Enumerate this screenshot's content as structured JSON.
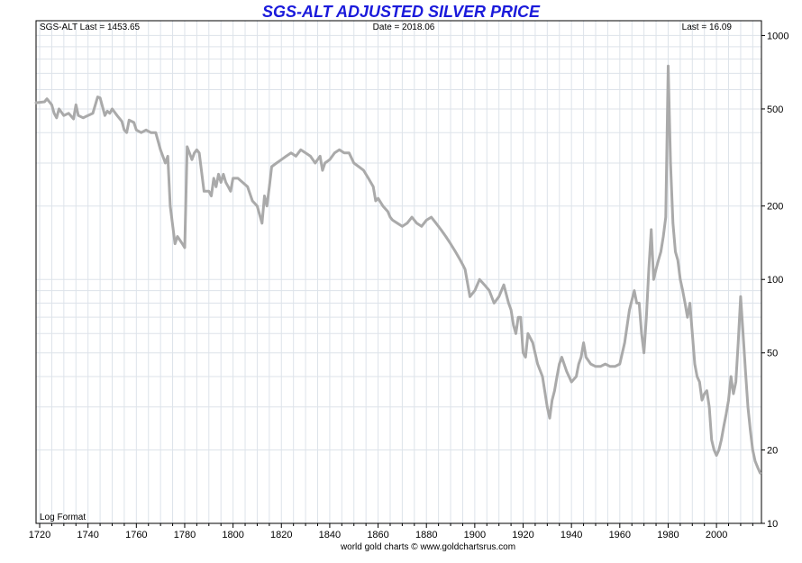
{
  "colors": {
    "title": "#1a1adb",
    "series": "#aaaaaa",
    "grid": "#dde3ea",
    "axis": "#000000"
  },
  "chart_data": {
    "type": "line",
    "title": "SGS-ALT ADJUSTED  SILVER PRICE",
    "header_left": "SGS-ALT Last = 1453.65",
    "header_center": "Date = 2018.06",
    "header_right": "Last = 16.09",
    "format_label": "Log Format",
    "footer": "world gold charts © www.goldchartsrus.com",
    "xlim": [
      1718.5,
      2018.6
    ],
    "ylim": [
      10,
      1150
    ],
    "yscale": "log",
    "x_ticks": [
      1720,
      1740,
      1760,
      1780,
      1800,
      1820,
      1840,
      1860,
      1880,
      1900,
      1920,
      1940,
      1960,
      1980,
      2000
    ],
    "y_ticks": [
      10,
      20,
      50,
      100,
      200,
      500,
      1000
    ],
    "grid": true,
    "series": [
      {
        "x": [
          1718.5,
          1722,
          1723,
          1725,
          1726,
          1727,
          1728,
          1730,
          1732,
          1734,
          1735,
          1736,
          1738,
          1740,
          1742,
          1744,
          1745,
          1747,
          1748,
          1749,
          1750,
          1752,
          1754,
          1755,
          1756,
          1757,
          1759,
          1760,
          1762,
          1764,
          1766,
          1768,
          1770,
          1772,
          1773,
          1774,
          1776,
          1777,
          1778,
          1779,
          1780,
          1781,
          1783,
          1784,
          1785,
          1786,
          1788,
          1790,
          1791,
          1792,
          1793,
          1794,
          1795,
          1796,
          1797,
          1798,
          1799,
          1800,
          1802,
          1804,
          1806,
          1808,
          1810,
          1812,
          1813,
          1814,
          1815,
          1816,
          1818,
          1820,
          1822,
          1824,
          1826,
          1828,
          1830,
          1832,
          1834,
          1836,
          1837,
          1838,
          1840,
          1842,
          1844,
          1846,
          1848,
          1850,
          1852,
          1854,
          1856,
          1858,
          1859,
          1860,
          1862,
          1864,
          1865,
          1866,
          1868,
          1870,
          1872,
          1874,
          1876,
          1878,
          1880,
          1882,
          1884,
          1886,
          1888,
          1890,
          1892,
          1894,
          1895,
          1896,
          1898,
          1900,
          1902,
          1904,
          1906,
          1908,
          1910,
          1912,
          1914,
          1915,
          1916,
          1917,
          1918,
          1919,
          1920,
          1921,
          1922,
          1924,
          1926,
          1928,
          1930,
          1931,
          1932,
          1933,
          1934,
          1935,
          1936,
          1938,
          1940,
          1942,
          1943,
          1944,
          1945,
          1946,
          1948,
          1950,
          1952,
          1954,
          1956,
          1958,
          1960,
          1962,
          1964,
          1966,
          1967,
          1968,
          1969,
          1970,
          1971,
          1972,
          1973,
          1974,
          1975,
          1976,
          1977,
          1978,
          1979,
          1980,
          1981,
          1982,
          1983,
          1984,
          1985,
          1986,
          1987,
          1988,
          1989,
          1990,
          1991,
          1992,
          1993,
          1994,
          1995,
          1996,
          1997,
          1998,
          1999,
          2000,
          2001,
          2002,
          2003,
          2004,
          2005,
          2006,
          2007,
          2008,
          2009,
          2010,
          2011,
          2012,
          2013,
          2014,
          2015,
          2016,
          2017,
          2018.06
        ],
        "y": [
          530,
          535,
          550,
          520,
          480,
          460,
          500,
          470,
          480,
          455,
          520,
          470,
          460,
          470,
          480,
          560,
          555,
          470,
          490,
          480,
          500,
          470,
          445,
          410,
          400,
          450,
          440,
          410,
          400,
          410,
          400,
          400,
          340,
          300,
          320,
          200,
          140,
          150,
          145,
          140,
          135,
          350,
          310,
          330,
          340,
          330,
          230,
          230,
          220,
          260,
          240,
          270,
          250,
          270,
          250,
          240,
          230,
          260,
          260,
          250,
          240,
          210,
          200,
          170,
          220,
          200,
          240,
          290,
          300,
          310,
          320,
          330,
          320,
          340,
          330,
          320,
          300,
          320,
          280,
          300,
          310,
          330,
          340,
          330,
          330,
          300,
          290,
          280,
          260,
          240,
          210,
          215,
          200,
          190,
          180,
          175,
          170,
          165,
          170,
          180,
          170,
          165,
          175,
          180,
          170,
          160,
          150,
          140,
          130,
          120,
          115,
          110,
          85,
          90,
          100,
          95,
          90,
          80,
          85,
          95,
          80,
          75,
          65,
          60,
          70,
          70,
          50,
          48,
          60,
          55,
          45,
          40,
          30,
          27,
          32,
          35,
          40,
          45,
          48,
          42,
          38,
          40,
          45,
          48,
          55,
          48,
          45,
          44,
          44,
          45,
          44,
          44,
          45,
          55,
          75,
          90,
          80,
          80,
          60,
          50,
          70,
          110,
          160,
          100,
          110,
          120,
          130,
          150,
          180,
          750,
          300,
          170,
          130,
          120,
          100,
          90,
          80,
          70,
          80,
          60,
          45,
          40,
          38,
          32,
          34,
          35,
          30,
          22,
          20,
          19,
          20,
          22,
          25,
          28,
          32,
          40,
          34,
          38,
          55,
          85,
          60,
          42,
          30,
          24,
          20,
          18,
          17,
          16.09
        ]
      }
    ]
  }
}
